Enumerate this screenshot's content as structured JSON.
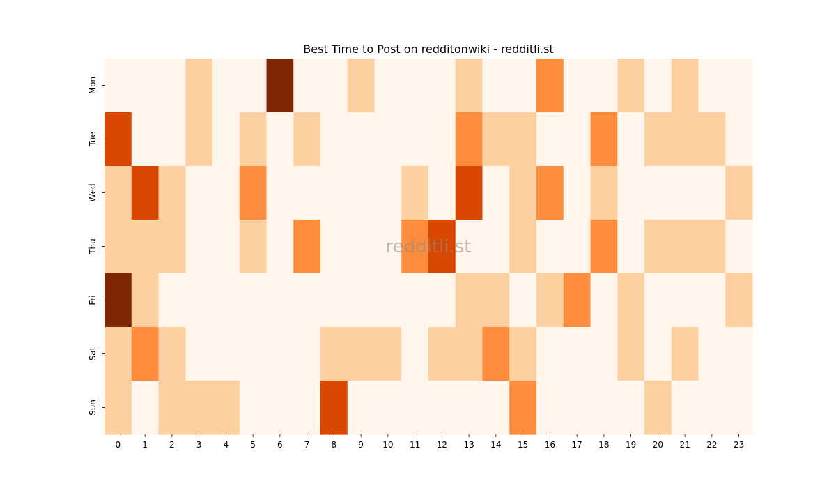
{
  "chart_data": {
    "type": "heatmap",
    "title": "Best Time to Post on redditonwiki - redditli.st",
    "watermark": "redditli.st",
    "x_categories": [
      "0",
      "1",
      "2",
      "3",
      "4",
      "5",
      "6",
      "7",
      "8",
      "9",
      "10",
      "11",
      "12",
      "13",
      "14",
      "15",
      "16",
      "17",
      "18",
      "19",
      "20",
      "21",
      "22",
      "23"
    ],
    "y_categories": [
      "Mon",
      "Tue",
      "Wed",
      "Thu",
      "Fri",
      "Sat",
      "Sun"
    ],
    "values": [
      [
        0,
        0,
        0,
        1,
        0,
        0,
        4,
        0,
        0,
        1,
        0,
        0,
        0,
        1,
        0,
        0,
        2,
        0,
        0,
        1,
        0,
        1,
        0,
        0
      ],
      [
        3,
        0,
        0,
        1,
        0,
        1,
        0,
        1,
        0,
        0,
        0,
        0,
        0,
        2,
        1,
        1,
        0,
        0,
        2,
        0,
        1,
        1,
        1,
        0
      ],
      [
        1,
        3,
        1,
        0,
        0,
        2,
        0,
        0,
        0,
        0,
        0,
        1,
        0,
        3,
        0,
        1,
        2,
        0,
        1,
        0,
        0,
        0,
        0,
        1
      ],
      [
        1,
        1,
        1,
        0,
        0,
        1,
        0,
        2,
        0,
        0,
        0,
        2,
        3,
        0,
        0,
        1,
        0,
        0,
        2,
        0,
        1,
        1,
        1,
        0
      ],
      [
        4,
        1,
        0,
        0,
        0,
        0,
        0,
        0,
        0,
        0,
        0,
        0,
        0,
        1,
        1,
        0,
        1,
        2,
        0,
        1,
        0,
        0,
        0,
        1
      ],
      [
        1,
        2,
        1,
        0,
        0,
        0,
        0,
        0,
        1,
        1,
        1,
        0,
        1,
        1,
        2,
        1,
        0,
        0,
        0,
        1,
        0,
        1,
        0,
        0
      ],
      [
        1,
        0,
        1,
        1,
        1,
        0,
        0,
        0,
        3,
        0,
        0,
        0,
        0,
        0,
        0,
        2,
        0,
        0,
        0,
        0,
        1,
        0,
        0,
        0
      ]
    ],
    "value_range": [
      0,
      4
    ],
    "colormap": [
      "#fff5eb",
      "#fdd0a2",
      "#fd8d3c",
      "#d94801",
      "#7f2704"
    ],
    "grid": false,
    "legend": "none"
  }
}
